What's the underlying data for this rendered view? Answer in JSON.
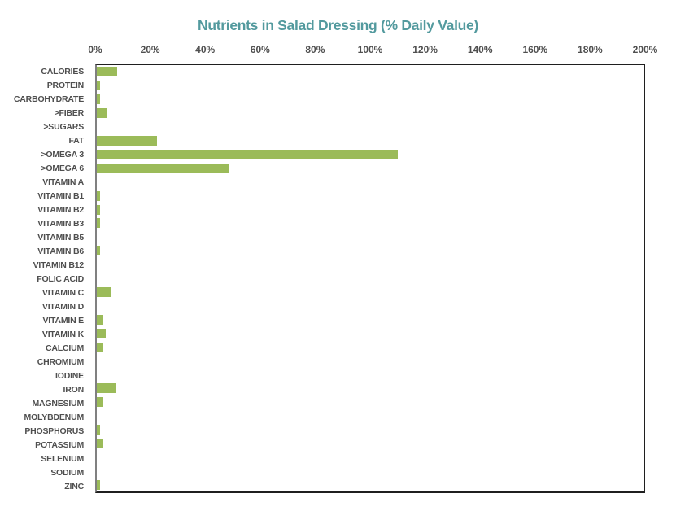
{
  "chart_data": {
    "type": "bar",
    "orientation": "horizontal",
    "title": "Nutrients in Salad Dressing (% Daily Value)",
    "xlabel": "",
    "ylabel": "",
    "value_unit": "% Daily Value",
    "xlim": [
      0,
      200
    ],
    "x_tick_labels": [
      "0%",
      "20%",
      "40%",
      "60%",
      "80%",
      "100%",
      "120%",
      "140%",
      "160%",
      "180%",
      "200%"
    ],
    "x_tick_values": [
      0,
      20,
      40,
      60,
      80,
      100,
      120,
      140,
      160,
      180,
      200
    ],
    "grid": false,
    "legend": false,
    "axis_position": "top",
    "categories": [
      "CALORIES",
      "PROTEIN",
      "CARBOHYDRATE",
      ">FIBER",
      ">SUGARS",
      "FAT",
      ">OMEGA 3",
      ">OMEGA 6",
      "VITAMIN A",
      "VITAMIN B1",
      "VITAMIN B2",
      "VITAMIN B3",
      "VITAMIN B5",
      "VITAMIN B6",
      "VITAMIN B12",
      "FOLIC ACID",
      "VITAMIN C",
      "VITAMIN D",
      "VITAMIN E",
      "VITAMIN K",
      "CALCIUM",
      "CHROMIUM",
      "IODINE",
      "IRON",
      "MAGNESIUM",
      "MOLYBDENUM",
      "PHOSPHORUS",
      "POTASSIUM",
      "SELENIUM",
      "SODIUM",
      "ZINC"
    ],
    "values": [
      7.5,
      1.2,
      1.3,
      3.5,
      0,
      22,
      110,
      48,
      0,
      1.3,
      1.3,
      1.3,
      0,
      1.3,
      0,
      0,
      5.3,
      0,
      2.3,
      3.2,
      2.4,
      0,
      0,
      7.2,
      2.4,
      0,
      1.3,
      2.4,
      0,
      0,
      1.3
    ],
    "colors": {
      "bar": "#9bbb59",
      "title": "#539a9e",
      "axis_label_text": "#4f4f4f",
      "plot_border": "#1f1f1f",
      "category_axis_line": "#808080",
      "background": "#ffffff"
    }
  }
}
